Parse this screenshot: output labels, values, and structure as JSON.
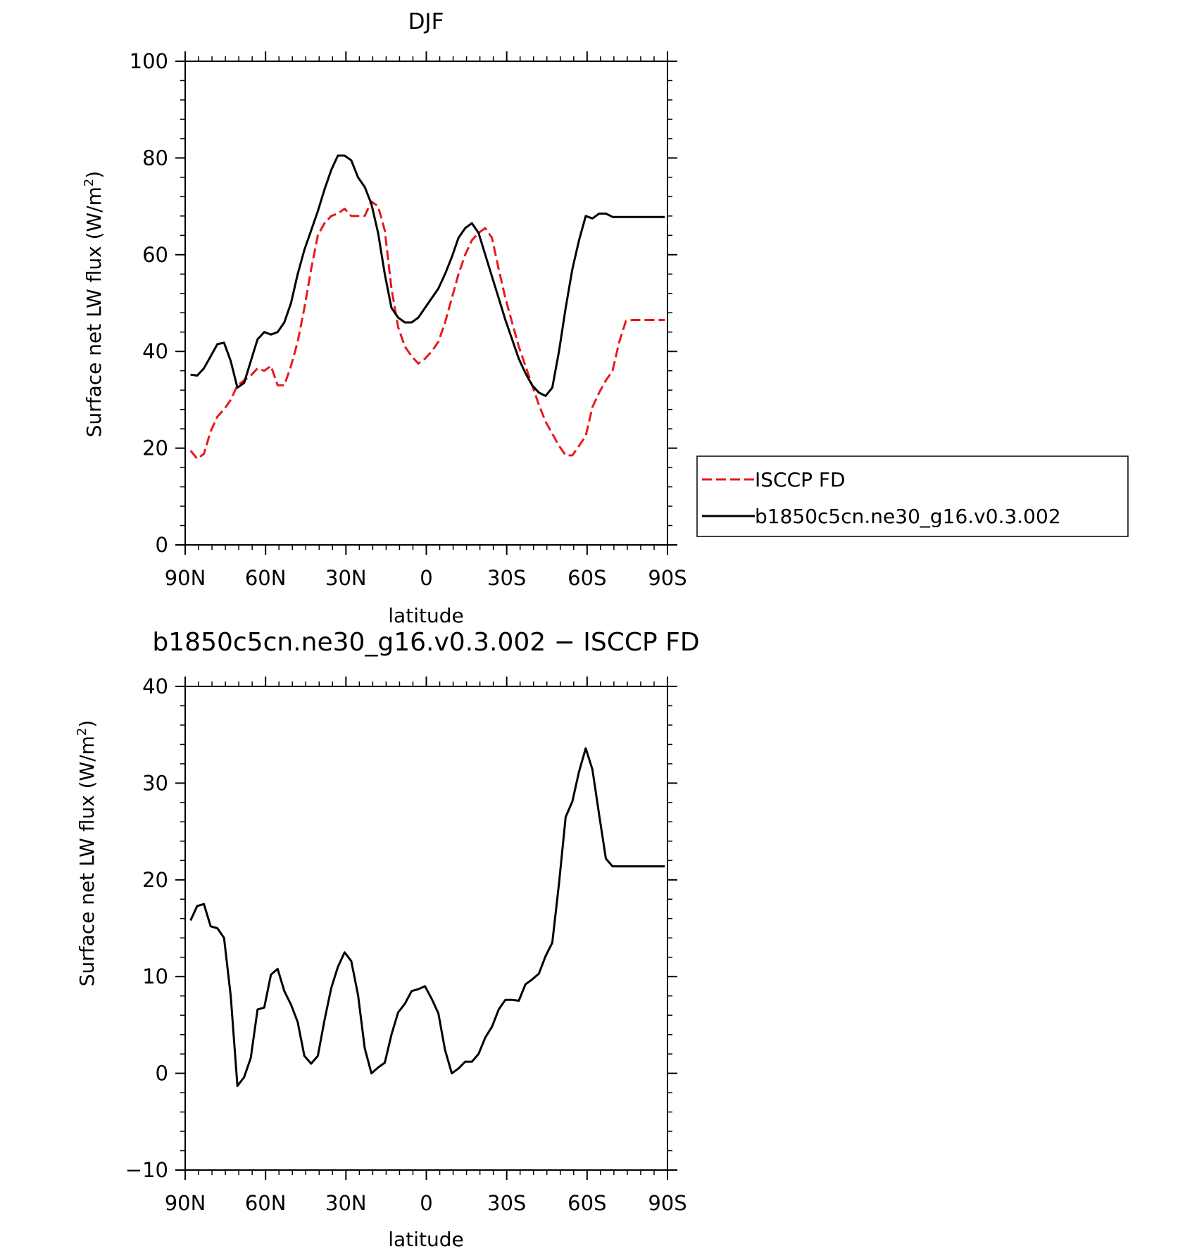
{
  "chart_data": [
    {
      "type": "line",
      "title": "DJF",
      "xlabel": "latitude",
      "ylabel": "Surface net LW flux (W/m²)",
      "xlim": [
        90,
        -90
      ],
      "ylim": [
        0,
        100
      ],
      "xticks": [
        {
          "value": 90,
          "label": "90N"
        },
        {
          "value": 60,
          "label": "60N"
        },
        {
          "value": 30,
          "label": "30N"
        },
        {
          "value": 0,
          "label": "0"
        },
        {
          "value": -30,
          "label": "30S"
        },
        {
          "value": -60,
          "label": "60S"
        },
        {
          "value": -90,
          "label": "90S"
        }
      ],
      "yticks": [
        0,
        20,
        40,
        60,
        80,
        100
      ],
      "grid": false,
      "legend": {
        "placement": "right"
      },
      "series": [
        {
          "name": "ISCCP FD",
          "color": "#e8191c",
          "dash": "dashed",
          "x": [
            88,
            85.5,
            83,
            80.5,
            78,
            75.5,
            73,
            70.5,
            68,
            65.5,
            63,
            60.5,
            58,
            55.5,
            53,
            50.5,
            48,
            45.5,
            43,
            40.5,
            38,
            35.5,
            33,
            30.5,
            28,
            25.5,
            23,
            20.5,
            18,
            15.5,
            13,
            10.5,
            8,
            5.5,
            3,
            0.5,
            -2,
            -4.5,
            -7,
            -9.5,
            -12,
            -14.5,
            -17,
            -19.5,
            -22,
            -24.5,
            -27,
            -29.5,
            -32,
            -34.5,
            -37,
            -39.5,
            -42,
            -44.5,
            -47,
            -49.5,
            -52,
            -54.5,
            -57,
            -59.5,
            -62,
            -64.5,
            -67,
            -69.5,
            -72,
            -74.5,
            -77,
            -79.5,
            -82,
            -84.5,
            -87,
            -89
          ],
          "y": [
            19.5,
            17.8,
            18.8,
            23.5,
            26.5,
            28,
            30,
            33,
            34,
            35,
            36.5,
            36,
            37,
            33,
            33,
            37,
            42,
            49,
            57,
            64,
            66.5,
            68,
            68.5,
            69.5,
            68,
            68,
            68,
            71,
            70,
            65,
            53,
            45,
            41,
            39,
            37.5,
            38.5,
            40,
            42,
            46,
            51,
            56,
            60,
            63,
            64.5,
            65.5,
            63.5,
            57,
            51,
            46,
            41,
            37,
            33,
            29,
            25.5,
            23,
            20.5,
            18.5,
            18.5,
            20.5,
            22.5,
            28.5,
            31.5,
            34,
            36,
            42,
            46.3,
            46.5,
            46.5,
            46.5,
            46.5,
            46.5,
            46.5
          ]
        },
        {
          "name": "b1850c5cn.ne30_g16.v0.3.002",
          "color": "#000000",
          "dash": "solid",
          "x": [
            88,
            85.5,
            83,
            80.5,
            78,
            75.5,
            73,
            70.5,
            68,
            65.5,
            63,
            60.5,
            58,
            55.5,
            53,
            50.5,
            48,
            45.5,
            43,
            40.5,
            38,
            35.5,
            33,
            30.5,
            28,
            25.5,
            23,
            20.5,
            18,
            15.5,
            13,
            10.5,
            8,
            5.5,
            3,
            0.5,
            -2,
            -4.5,
            -7,
            -9.5,
            -12,
            -14.5,
            -17,
            -19.5,
            -22,
            -24.5,
            -27,
            -29.5,
            -32,
            -34.5,
            -37,
            -39.5,
            -42,
            -44.5,
            -47,
            -49.5,
            -52,
            -54.5,
            -57,
            -59.5,
            -62,
            -64.5,
            -67,
            -69.5,
            -72,
            -74.5,
            -77,
            -79.5,
            -82,
            -84.5,
            -87,
            -89
          ],
          "y": [
            35.2,
            35,
            36.5,
            39,
            41.5,
            41.8,
            38,
            32.5,
            33.5,
            38,
            42.5,
            44,
            43.5,
            44,
            46,
            50,
            56,
            61,
            65,
            69,
            73.5,
            77.5,
            80.5,
            80.5,
            79.5,
            76,
            74,
            70.5,
            64.5,
            56,
            49,
            47,
            46,
            46,
            47,
            49,
            51,
            53,
            56,
            59.5,
            63.5,
            65.5,
            66.5,
            64.5,
            60,
            55.5,
            51,
            46.5,
            42.5,
            38.5,
            35.5,
            33,
            31.5,
            30.8,
            32.5,
            40,
            49,
            57,
            63,
            68,
            67.5,
            68.5,
            68.5,
            67.8,
            67.8,
            67.8,
            67.8,
            67.8,
            67.8,
            67.8,
            67.8,
            67.8
          ]
        }
      ]
    },
    {
      "type": "line",
      "title": "b1850c5cn.ne30_g16.v0.3.002 − ISCCP FD",
      "xlabel": "latitude",
      "ylabel": "Surface net LW flux (W/m²)",
      "xlim": [
        90,
        -90
      ],
      "ylim": [
        -10,
        40
      ],
      "xticks": [
        {
          "value": 90,
          "label": "90N"
        },
        {
          "value": 60,
          "label": "60N"
        },
        {
          "value": 30,
          "label": "30N"
        },
        {
          "value": 0,
          "label": "0"
        },
        {
          "value": -30,
          "label": "30S"
        },
        {
          "value": -60,
          "label": "60S"
        },
        {
          "value": -90,
          "label": "90S"
        }
      ],
      "yticks": [
        -10,
        0,
        10,
        20,
        30,
        40
      ],
      "yticklabels": [
        "−10",
        "0",
        "10",
        "20",
        "30",
        "40"
      ],
      "grid": false,
      "series": [
        {
          "color": "#000000",
          "dash": "solid",
          "x": [
            88,
            85.5,
            83,
            80.5,
            78,
            75.5,
            73,
            70.5,
            68,
            65.5,
            63,
            60.5,
            58,
            55.5,
            53,
            50.5,
            48,
            45.5,
            43,
            40.5,
            38,
            35.5,
            33,
            30.5,
            28,
            25.5,
            23,
            20.5,
            18,
            15.5,
            13,
            10.5,
            8,
            5.5,
            3,
            0.5,
            -2,
            -4.5,
            -7,
            -9.5,
            -12,
            -14.5,
            -17,
            -19.5,
            -22,
            -24.5,
            -27,
            -29.5,
            -32,
            -34.5,
            -37,
            -39.5,
            -42,
            -44.5,
            -47,
            -49.5,
            -52,
            -54.5,
            -57,
            -59.5,
            -62,
            -64.5,
            -67,
            -69.5,
            -72,
            -74.5,
            -77,
            -79.5,
            -82,
            -84.5,
            -87,
            -89
          ],
          "y": [
            15.8,
            17.3,
            17.5,
            15.2,
            15,
            14,
            8,
            -1.3,
            -0.4,
            1.6,
            6.6,
            6.8,
            10.2,
            10.8,
            8.5,
            7.1,
            5.3,
            1.8,
            1.0,
            1.8,
            5.5,
            8.8,
            11,
            12.5,
            11.6,
            8.1,
            2.6,
            0,
            0.6,
            1.1,
            4,
            6.3,
            7.2,
            8.5,
            8.7,
            9,
            7.7,
            6.2,
            2.4,
            0,
            0.5,
            1.2,
            1.2,
            2,
            3.7,
            4.8,
            6.6,
            7.6,
            7.6,
            7.5,
            9.2,
            9.7,
            10.3,
            12.1,
            13.5,
            19.6,
            26.5,
            28.1,
            31.2,
            33.6,
            31.4,
            26.7,
            22.2,
            21.4,
            21.4,
            21.4,
            21.4,
            21.4,
            21.4,
            21.4,
            21.4,
            21.4
          ]
        }
      ]
    }
  ]
}
